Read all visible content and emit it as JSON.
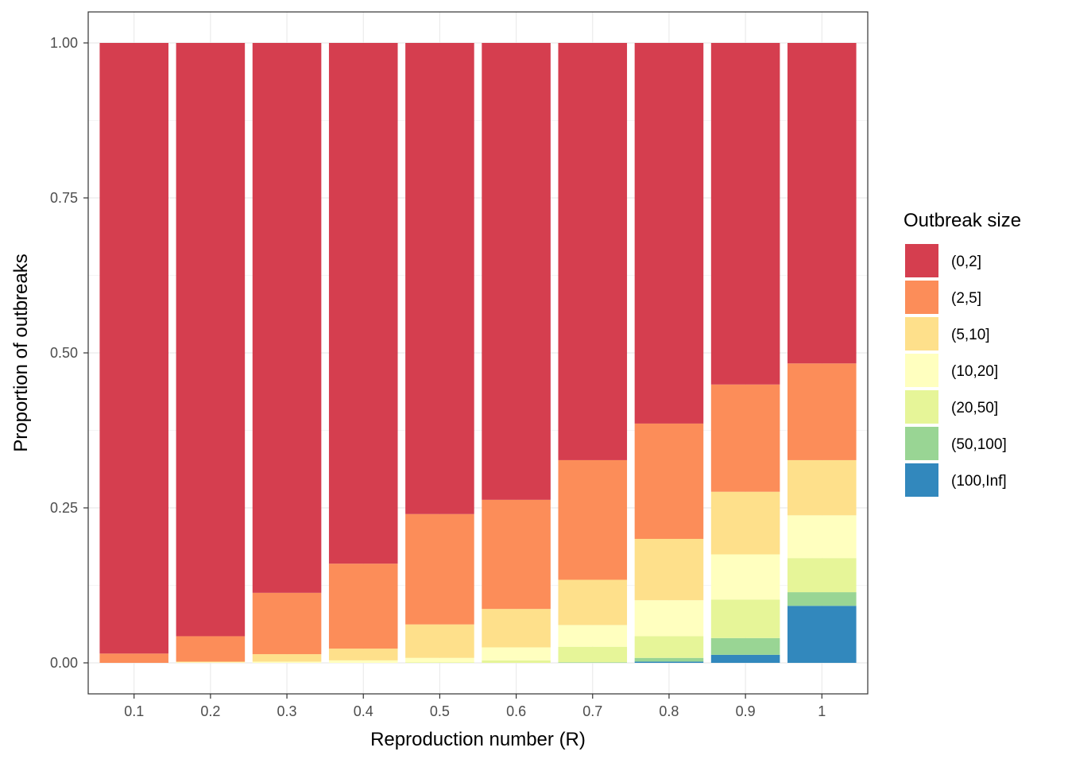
{
  "chart_data": {
    "type": "bar",
    "stacked": true,
    "title": "",
    "xlabel": "Reproduction number (R)",
    "ylabel": "Proportion of outbreaks",
    "ylim": [
      -0.05,
      1.05
    ],
    "yticks": [
      "0.00",
      "0.25",
      "0.50",
      "0.75",
      "1.00"
    ],
    "ytick_values": [
      0,
      0.25,
      0.5,
      0.75,
      1.0
    ],
    "grid": true,
    "legend_title": "Outbreak size",
    "legend_position": "right",
    "categories": [
      "0.1",
      "0.2",
      "0.3",
      "0.4",
      "0.5",
      "0.6",
      "0.7",
      "0.8",
      "0.9",
      "1"
    ],
    "series": [
      {
        "name": "(100,Inf]",
        "color": "#3288BD",
        "values": [
          0,
          0,
          0,
          0,
          0,
          0,
          0,
          0.002,
          0.013,
          0.092
        ]
      },
      {
        "name": "(50,100]",
        "color": "#99D594",
        "values": [
          0,
          0,
          0,
          0,
          0,
          0,
          0.001,
          0.006,
          0.027,
          0.022
        ]
      },
      {
        "name": "(20,50]",
        "color": "#E6F598",
        "values": [
          0,
          0,
          0,
          0,
          0.001,
          0.004,
          0.025,
          0.035,
          0.062,
          0.055
        ]
      },
      {
        "name": "(10,20]",
        "color": "#FFFFBF",
        "values": [
          0,
          0.001,
          0.002,
          0.004,
          0.007,
          0.021,
          0.035,
          0.058,
          0.073,
          0.069
        ]
      },
      {
        "name": "(5,10]",
        "color": "#FEE08B",
        "values": [
          0,
          0.001,
          0.012,
          0.019,
          0.054,
          0.062,
          0.073,
          0.099,
          0.101,
          0.089
        ]
      },
      {
        "name": "(2,5]",
        "color": "#FC8D59",
        "values": [
          0.015,
          0.041,
          0.099,
          0.137,
          0.178,
          0.176,
          0.193,
          0.186,
          0.173,
          0.156
        ]
      },
      {
        "name": "(0,2]",
        "color": "#D53E4F",
        "values": [
          0.985,
          0.957,
          0.887,
          0.84,
          0.76,
          0.737,
          0.673,
          0.614,
          0.551,
          0.517
        ]
      }
    ],
    "legend_order": [
      "(0,2]",
      "(2,5]",
      "(5,10]",
      "(10,20]",
      "(20,50]",
      "(50,100]",
      "(100,Inf]"
    ]
  }
}
